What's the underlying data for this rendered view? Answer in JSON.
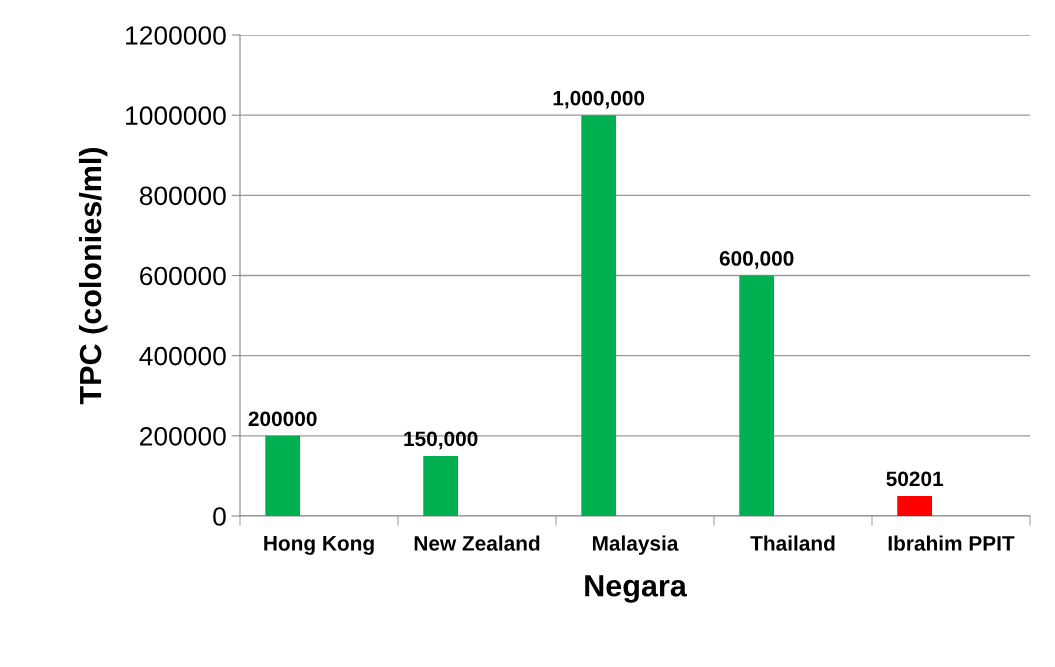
{
  "chart_data": {
    "type": "bar",
    "xlabel": "Negara",
    "ylabel": "TPC (colonies/ml)",
    "categories": [
      "Hong Kong",
      "New Zealand",
      "Malaysia",
      "Thailand",
      "Ibrahim PPIT"
    ],
    "values": [
      200000,
      150000,
      1000000,
      600000,
      50201
    ],
    "colors": [
      "#00b050",
      "#00b050",
      "#00b050",
      "#00b050",
      "#ff0000"
    ],
    "value_labels": [
      "200000",
      "150,000",
      "1,000,000",
      "600,000",
      "50201"
    ],
    "ylim": [
      0,
      1200000
    ],
    "yticks": [
      0,
      200000,
      400000,
      600000,
      800000,
      1000000,
      1200000
    ],
    "grid": "y"
  }
}
